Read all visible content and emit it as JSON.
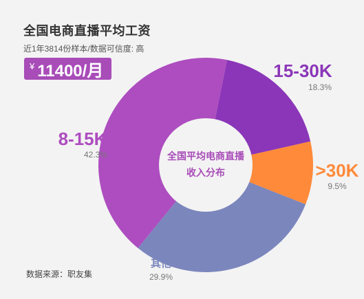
{
  "header": {
    "title": "全国电商直播平均工资",
    "subtitle": "近1年3814份样本/数据可信度: 高"
  },
  "salary": {
    "currency": "¥",
    "amount": "11400/月"
  },
  "source": "数据来源：职友集",
  "colors": {
    "background": "#f3f3f3",
    "center_circle": "#f3f3f3",
    "accent": "#a84cb8"
  },
  "chart_data": {
    "type": "pie",
    "donut": true,
    "center_label_lines": [
      "全国平均电商直播",
      "收入分布"
    ],
    "slices": [
      {
        "label": "15-30K",
        "percent_label": "18.3%",
        "value": 18.3,
        "color": "#8b36b8"
      },
      {
        "label": ">30K",
        "percent_label": "9.5%",
        "value": 9.5,
        "color": "#ff8a3a"
      },
      {
        "label": "其他",
        "percent_label": "29.9%",
        "value": 29.9,
        "color": "#7b86bd"
      },
      {
        "label": "8-15K",
        "percent_label": "42.3%",
        "value": 42.3,
        "color": "#ad4dbf"
      }
    ]
  }
}
